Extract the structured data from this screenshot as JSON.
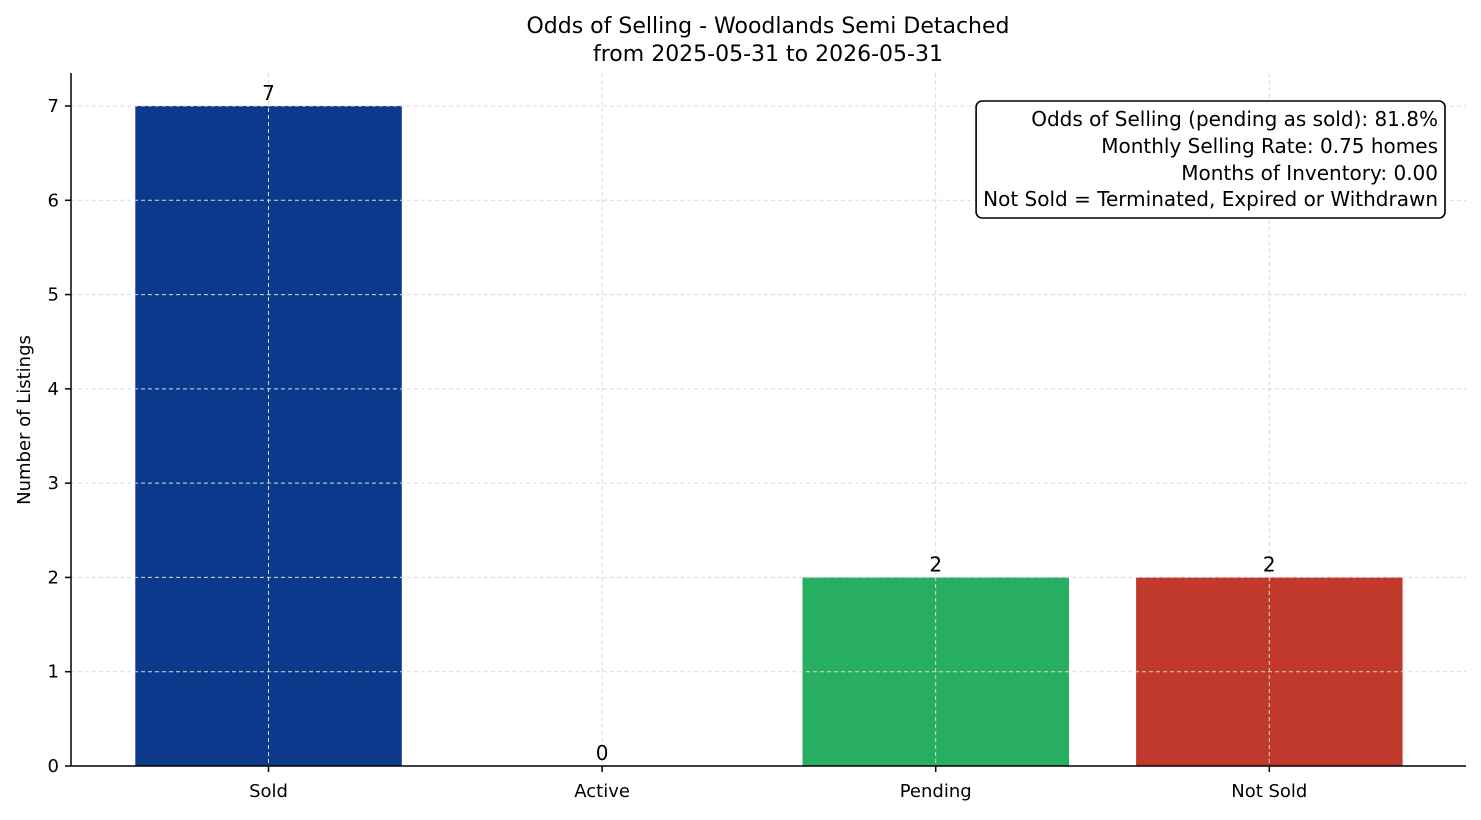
{
  "chart_data": {
    "type": "bar",
    "title": "Odds of Selling - Woodlands Semi Detached",
    "subtitle": "from 2025-05-31 to 2026-05-31",
    "xlabel": "",
    "ylabel": "Number of Listings",
    "categories": [
      "Sold",
      "Active",
      "Pending",
      "Not Sold"
    ],
    "values": [
      7,
      0,
      2,
      2
    ],
    "value_labels": [
      "7",
      "0",
      "2",
      "2"
    ],
    "colors": [
      "#0b3a8c",
      "#0b3a8c",
      "#27ae60",
      "#c0392b"
    ],
    "ylim": [
      0,
      7.35
    ],
    "yticks": [
      0,
      1,
      2,
      3,
      4,
      5,
      6,
      7
    ],
    "grid": true,
    "info_box": {
      "placement": "top-right",
      "lines": [
        "Odds of Selling (pending as sold): 81.8%",
        "Monthly Selling Rate: 0.75 homes",
        "Months of Inventory: 0.00",
        "Not Sold = Terminated, Expired or Withdrawn"
      ]
    }
  }
}
